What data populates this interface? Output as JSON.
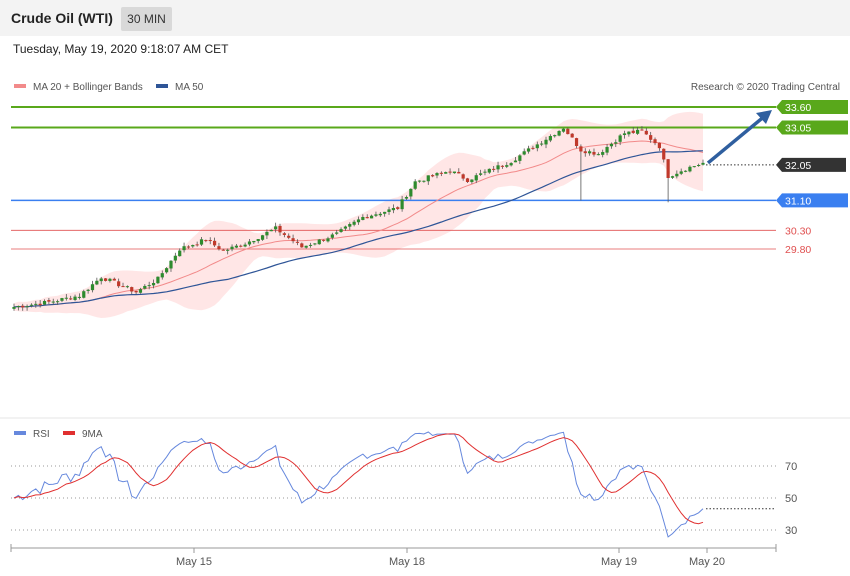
{
  "header": {
    "title": "Crude Oil (WTI)",
    "timeframe": "30 MIN",
    "datetime": "Tuesday, May 19, 2020 9:18:07 AM CET"
  },
  "legend": {
    "ma20": "MA 20 + Bollinger Bands",
    "ma50": "MA 50",
    "credit": "Research © 2020 Trading Central",
    "rsi": "RSI",
    "rsi_ma": "9MA"
  },
  "colors": {
    "ma20": "#f28a8a",
    "ma50": "#2f5597",
    "bands_fill": "#ffe2e2",
    "bull": "#2e8b2e",
    "bear": "#c0392b",
    "resistance": "#59a81b",
    "pivot": "#3a7ff0",
    "support": "#e05050",
    "current": "#333333",
    "arrow": "#2f5f9f",
    "rsi": "#6688dd",
    "rsi_ma": "#e03030"
  },
  "chart_data": [
    {
      "type": "candlestick",
      "title": "Crude Oil (WTI)",
      "timeframe": "30 MIN",
      "x_tick_labels": [
        "May 15",
        "May 18",
        "May 19",
        "May 20"
      ],
      "ylim": [
        28.0,
        34.2
      ],
      "price_path": [
        {
          "bar": 0,
          "close": 28.25
        },
        {
          "bar": 8,
          "close": 28.38
        },
        {
          "bar": 15,
          "close": 28.55
        },
        {
          "bar": 20,
          "close": 29.05
        },
        {
          "bar": 24,
          "close": 28.85
        },
        {
          "bar": 28,
          "close": 28.65
        },
        {
          "bar": 33,
          "close": 29.0
        },
        {
          "bar": 38,
          "close": 29.8
        },
        {
          "bar": 44,
          "close": 30.05
        },
        {
          "bar": 48,
          "close": 29.75
        },
        {
          "bar": 53,
          "close": 29.95
        },
        {
          "bar": 60,
          "close": 30.35
        },
        {
          "bar": 66,
          "close": 29.85
        },
        {
          "bar": 74,
          "close": 30.2
        },
        {
          "bar": 80,
          "close": 30.65
        },
        {
          "bar": 88,
          "close": 30.9
        },
        {
          "bar": 92,
          "close": 31.6
        },
        {
          "bar": 100,
          "close": 31.9
        },
        {
          "bar": 104,
          "close": 31.65
        },
        {
          "bar": 110,
          "close": 31.95
        },
        {
          "bar": 114,
          "close": 32.15
        },
        {
          "bar": 120,
          "close": 32.6
        },
        {
          "bar": 126,
          "close": 33.05
        },
        {
          "bar": 130,
          "close": 32.45
        },
        {
          "bar": 134,
          "close": 32.35
        },
        {
          "bar": 140,
          "close": 32.9
        },
        {
          "bar": 144,
          "close": 32.95
        },
        {
          "bar": 148,
          "close": 32.55
        },
        {
          "bar": 150,
          "close": 31.75
        },
        {
          "bar": 154,
          "close": 31.95
        },
        {
          "bar": 158,
          "close": 32.1
        }
      ],
      "levels": [
        {
          "label": "33.60",
          "value": 33.6,
          "kind": "resistance"
        },
        {
          "label": "33.05",
          "value": 33.05,
          "kind": "resistance"
        },
        {
          "label": "32.05",
          "value": 32.05,
          "kind": "current"
        },
        {
          "label": "31.10",
          "value": 31.1,
          "kind": "pivot"
        },
        {
          "label": "30.30",
          "value": 30.3,
          "kind": "support"
        },
        {
          "label": "29.80",
          "value": 29.8,
          "kind": "support"
        }
      ],
      "forecast_arrow": {
        "from": 32.05,
        "to": 33.6
      },
      "series": [
        {
          "name": "MA 20 + Bollinger Bands",
          "period": 20
        },
        {
          "name": "MA 50",
          "period": 50
        }
      ]
    },
    {
      "type": "line",
      "series": [
        {
          "name": "RSI"
        },
        {
          "name": "9MA",
          "period": 9
        }
      ],
      "y_tick_labels": [
        "70",
        "50",
        "30"
      ],
      "ylim": [
        15,
        85
      ]
    }
  ]
}
